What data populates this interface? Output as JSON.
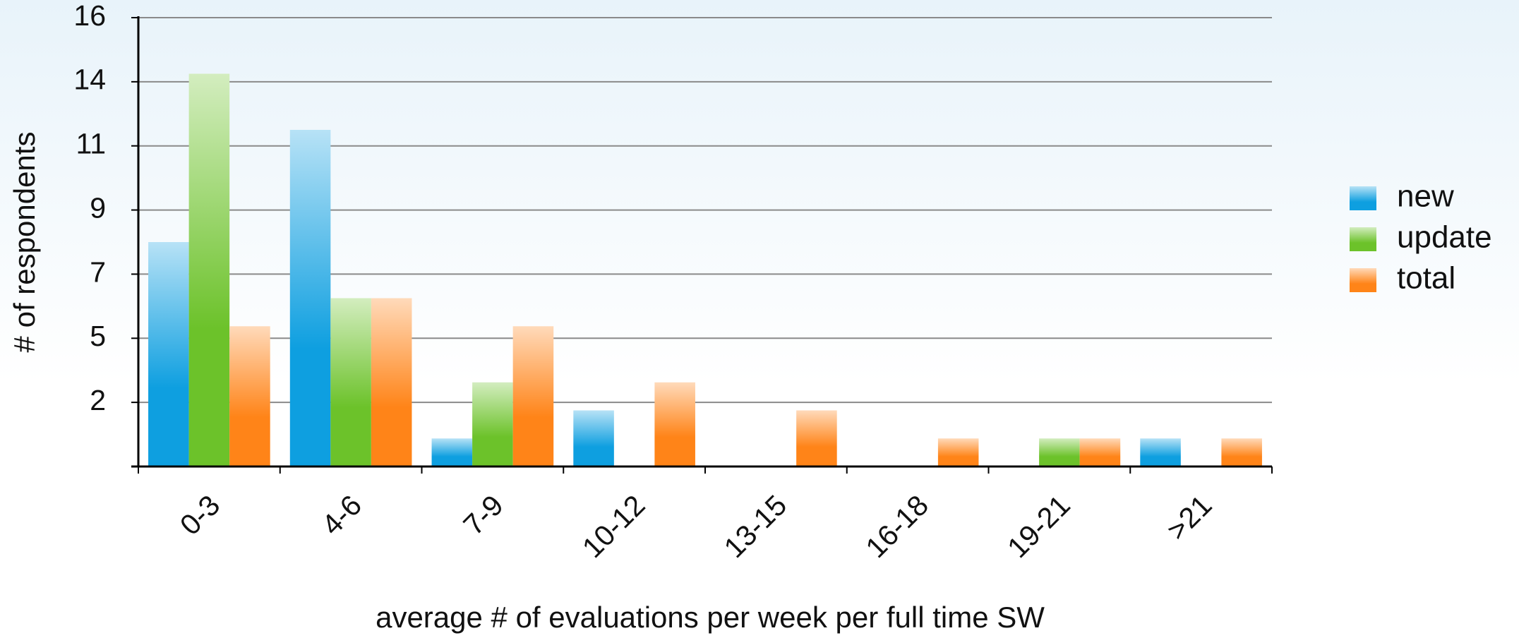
{
  "chart_data": {
    "type": "bar",
    "x_label": "average # of evaluations per week per full time SW",
    "y_label": "# of respondents",
    "categories": [
      "0-3",
      "4-6",
      "7-9",
      "10-12",
      "13-15",
      "16-18",
      "19-21",
      ">21"
    ],
    "series": [
      {
        "name": "new",
        "color": "#0e9fe0",
        "values": [
          8,
          12,
          1,
          2,
          0,
          0,
          0,
          1
        ]
      },
      {
        "name": "update",
        "color": "#6cc22a",
        "values": [
          14,
          6,
          3,
          0,
          0,
          0,
          1,
          0
        ]
      },
      {
        "name": "total",
        "color": "#ff8418",
        "values": [
          5,
          6,
          5,
          3,
          2,
          1,
          1,
          1
        ]
      }
    ],
    "ylim": [
      0,
      16
    ],
    "yticks": [
      {
        "value": 2.286,
        "label": "2"
      },
      {
        "value": 4.571,
        "label": "5"
      },
      {
        "value": 6.857,
        "label": "7"
      },
      {
        "value": 9.143,
        "label": "9"
      },
      {
        "value": 11.429,
        "label": "11"
      },
      {
        "value": 13.714,
        "label": "14"
      },
      16
    ],
    "grid": true,
    "legend": "right"
  }
}
